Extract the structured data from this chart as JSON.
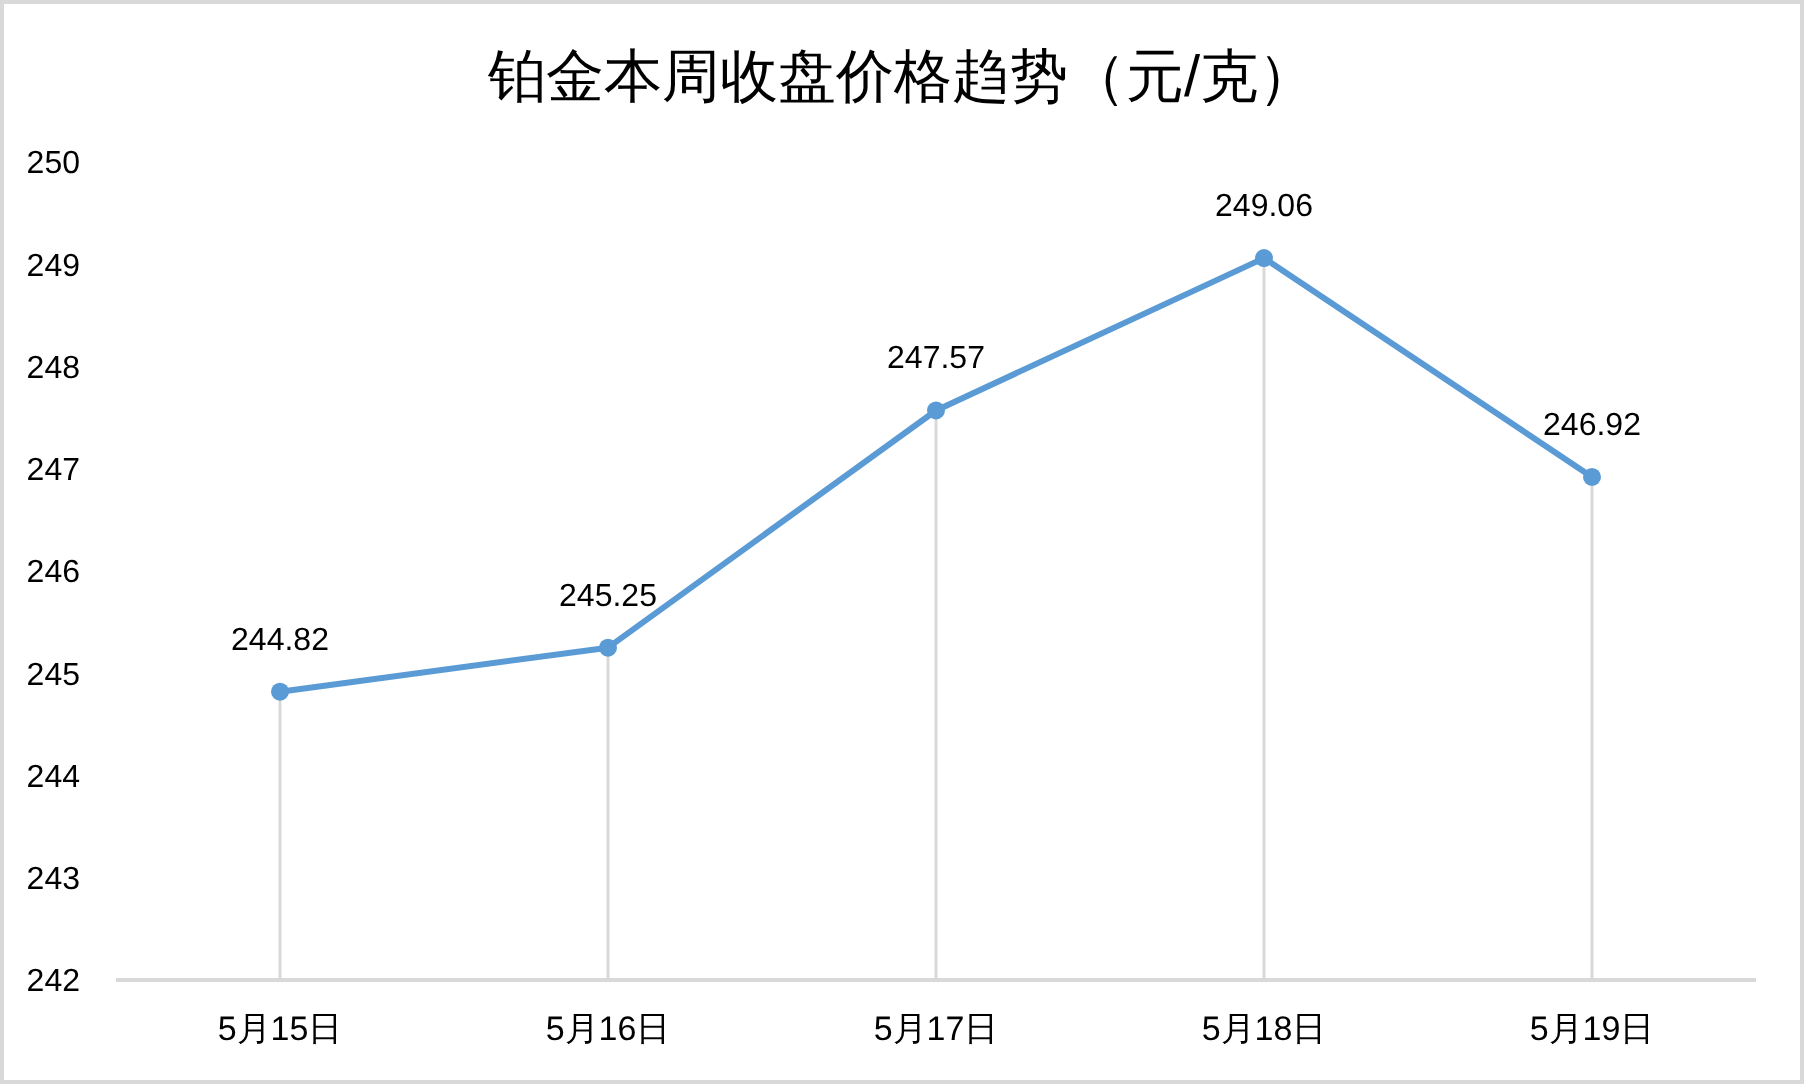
{
  "chart_data": {
    "type": "line",
    "title": "铂金本周收盘价格趋势（元/克）",
    "categories": [
      "5月15日",
      "5月16日",
      "5月17日",
      "5月18日",
      "5月19日"
    ],
    "series": [
      {
        "color": "#5b9bd5",
        "values": [
          244.82,
          245.25,
          247.57,
          249.06,
          246.92
        ]
      }
    ],
    "ylim": [
      242,
      250
    ],
    "yticks": [
      242,
      243,
      244,
      245,
      246,
      247,
      248,
      249,
      250
    ],
    "data_labels": true,
    "grid": "x",
    "marker": "circle"
  }
}
